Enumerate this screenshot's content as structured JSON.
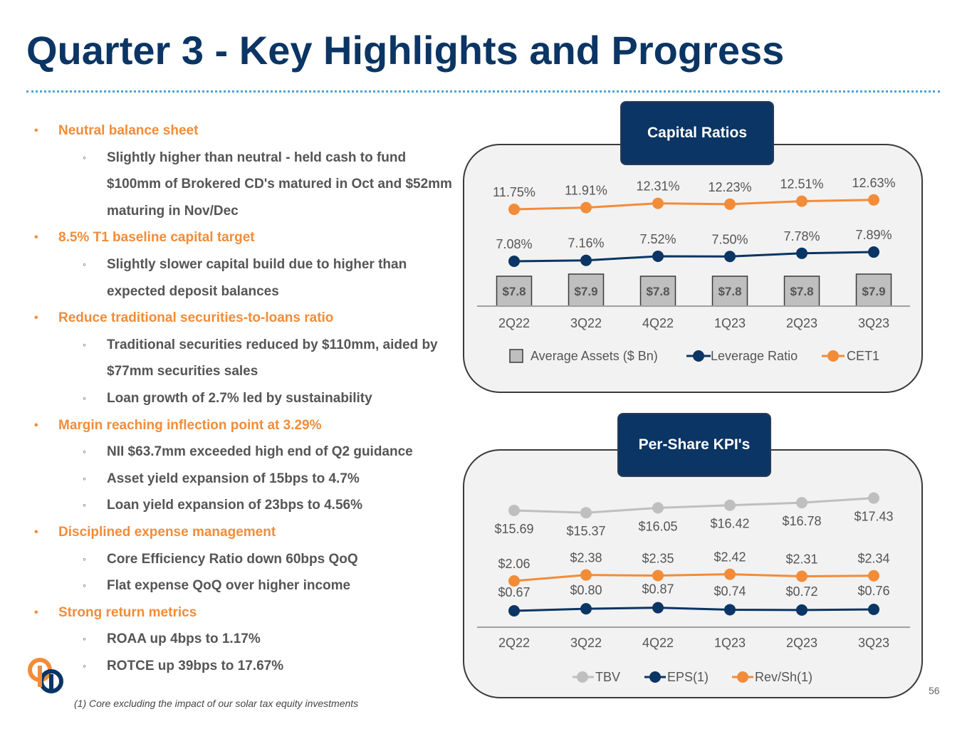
{
  "title": "Quarter 3 - Key Highlights and Progress",
  "bullets": [
    {
      "level": 1,
      "text": "Neutral balance sheet"
    },
    {
      "level": 2,
      "text": "Slightly higher than neutral - held cash to fund $100mm of Brokered CD's matured in Oct and $52mm maturing in Nov/Dec"
    },
    {
      "level": 1,
      "text": "8.5% T1 baseline capital target"
    },
    {
      "level": 2,
      "text": "Slightly slower capital build due to higher than expected deposit balances"
    },
    {
      "level": 1,
      "text": "Reduce traditional securities-to-loans ratio"
    },
    {
      "level": 2,
      "text": "Traditional securities reduced by $110mm, aided by $77mm securities sales"
    },
    {
      "level": 2,
      "text": "Loan growth of 2.7% led by sustainability"
    },
    {
      "level": 1,
      "text": "Margin reaching inflection point at 3.29%"
    },
    {
      "level": 2,
      "text": "NII $63.7mm exceeded high end of Q2 guidance"
    },
    {
      "level": 2,
      "text": "Asset yield expansion of 15bps to 4.7%"
    },
    {
      "level": 2,
      "text": "Loan yield expansion of 23bps to 4.56%"
    },
    {
      "level": 1,
      "text": "Disciplined expense management"
    },
    {
      "level": 2,
      "text": "Core Efficiency Ratio down 60bps QoQ"
    },
    {
      "level": 2,
      "text": "Flat expense QoQ over higher income"
    },
    {
      "level": 1,
      "text": "Strong return metrics"
    },
    {
      "level": 2,
      "text": "ROAA up 4bps to 1.17%"
    },
    {
      "level": 2,
      "text": "ROTCE up 39bps to 17.67%"
    }
  ],
  "footnote": "(1) Core excluding the impact of our solar tax equity investments",
  "page_number": "56",
  "colors": {
    "navy": "#0a3564",
    "orange": "#f28c38",
    "gray": "#bfbfbf",
    "text": "#555555"
  },
  "chart_data": [
    {
      "panel_title": "Capital Ratios",
      "type": "bar",
      "categories": [
        "2Q22",
        "3Q22",
        "4Q22",
        "1Q23",
        "2Q23",
        "3Q23"
      ],
      "series": [
        {
          "name": "Average Assets ($ Bn)",
          "kind": "bar",
          "color": "#bfbfbf",
          "values": [
            7.8,
            7.9,
            7.8,
            7.8,
            7.8,
            7.9
          ],
          "labels": [
            "$7.8",
            "$7.9",
            "$7.8",
            "$7.8",
            "$7.8",
            "$7.9"
          ]
        },
        {
          "name": "Leverage Ratio",
          "kind": "line",
          "color": "#0a3564",
          "values": [
            7.08,
            7.16,
            7.52,
            7.5,
            7.78,
            7.89
          ],
          "labels": [
            "7.08%",
            "7.16%",
            "7.52%",
            "7.50%",
            "7.78%",
            "7.89%"
          ]
        },
        {
          "name": "CET1",
          "kind": "line",
          "color": "#f28c38",
          "values": [
            11.75,
            11.91,
            12.31,
            12.23,
            12.51,
            12.63
          ],
          "labels": [
            "11.75%",
            "11.91%",
            "12.31%",
            "12.23%",
            "12.51%",
            "12.63%"
          ]
        }
      ],
      "legend": "bottom"
    },
    {
      "panel_title": "Per-Share KPI's",
      "type": "line",
      "categories": [
        "2Q22",
        "3Q22",
        "4Q22",
        "1Q23",
        "2Q23",
        "3Q23"
      ],
      "series": [
        {
          "name": "TBV",
          "kind": "line",
          "color": "#bfbfbf",
          "values": [
            15.69,
            15.37,
            16.05,
            16.42,
            16.78,
            17.43
          ],
          "labels": [
            "$15.69",
            "$15.37",
            "$16.05",
            "$16.42",
            "$16.78",
            "$17.43"
          ]
        },
        {
          "name": "EPS(1)",
          "kind": "line",
          "color": "#0a3564",
          "values": [
            0.67,
            0.8,
            0.87,
            0.74,
            0.72,
            0.76
          ],
          "labels": [
            "$0.67",
            "$0.80",
            "$0.87",
            "$0.74",
            "$0.72",
            "$0.76"
          ]
        },
        {
          "name": "Rev/Sh(1)",
          "kind": "line",
          "color": "#f28c38",
          "values": [
            2.06,
            2.38,
            2.35,
            2.42,
            2.31,
            2.34
          ],
          "labels": [
            "$2.06",
            "$2.38",
            "$2.35",
            "$2.42",
            "$2.31",
            "$2.34"
          ]
        }
      ],
      "legend": "bottom"
    }
  ]
}
